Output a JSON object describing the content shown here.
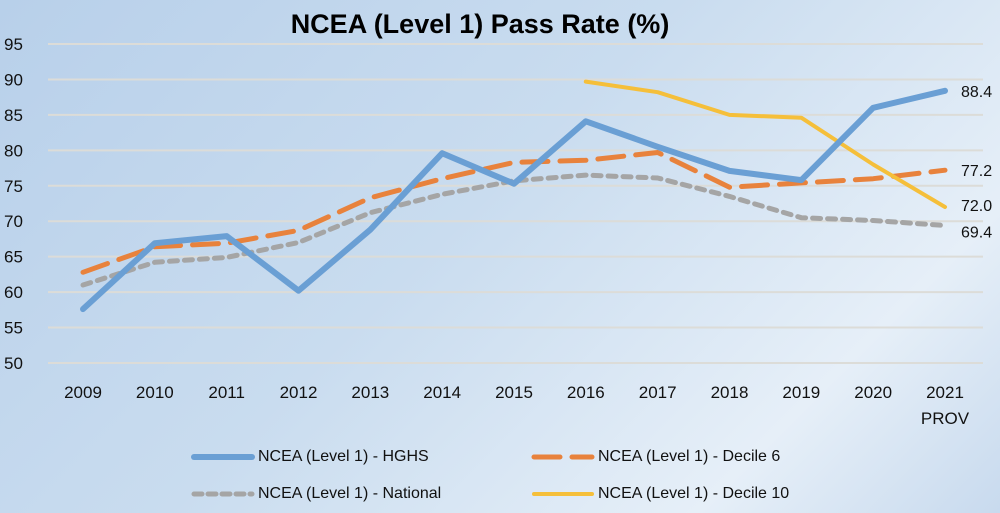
{
  "chart_data": {
    "type": "line",
    "title": "NCEA (Level 1) Pass Rate (%)",
    "xlabel": "",
    "ylabel": "",
    "categories": [
      "2009",
      "2010",
      "2011",
      "2012",
      "2013",
      "2014",
      "2015",
      "2016",
      "2017",
      "2018",
      "2019",
      "2020",
      "2021"
    ],
    "category_sublabels": [
      "",
      "",
      "",
      "",
      "",
      "",
      "",
      "",
      "",
      "",
      "",
      "",
      "PROV"
    ],
    "yticks": [
      "50",
      "55",
      "60",
      "65",
      "70",
      "75",
      "80",
      "85",
      "90",
      "95"
    ],
    "ylim": [
      50,
      95
    ],
    "grid": true,
    "legend_position": "bottom",
    "series": [
      {
        "name": "NCEA (Level 1) - HGHS",
        "color": "#6a9fd4",
        "style": "solid-thick",
        "values": [
          57.6,
          66.9,
          67.9,
          60.2,
          68.8,
          79.6,
          75.3,
          84.1,
          80.5,
          77.1,
          75.8,
          86.0,
          88.4
        ],
        "end_label": "88.4"
      },
      {
        "name": "NCEA (Level 1) - Decile 6",
        "color": "#e8823c",
        "style": "long-dash",
        "values": [
          62.8,
          66.4,
          66.9,
          68.7,
          73.3,
          76.0,
          78.3,
          78.6,
          79.7,
          74.8,
          75.4,
          76.0,
          77.2
        ],
        "end_label": "77.2"
      },
      {
        "name": "NCEA (Level 1) - National",
        "color": "#a5a5a5",
        "style": "short-dash",
        "values": [
          61.0,
          64.2,
          64.9,
          67.0,
          71.2,
          73.8,
          75.7,
          76.5,
          76.1,
          73.5,
          70.5,
          70.1,
          69.4
        ],
        "end_label": "69.4"
      },
      {
        "name": "NCEA (Level 1) - Decile 10",
        "color": "#f5bf3a",
        "style": "solid",
        "values": [
          null,
          null,
          null,
          null,
          null,
          null,
          null,
          89.7,
          88.2,
          85.0,
          84.6,
          78.0,
          72.0
        ],
        "end_label": "72.0"
      }
    ]
  }
}
